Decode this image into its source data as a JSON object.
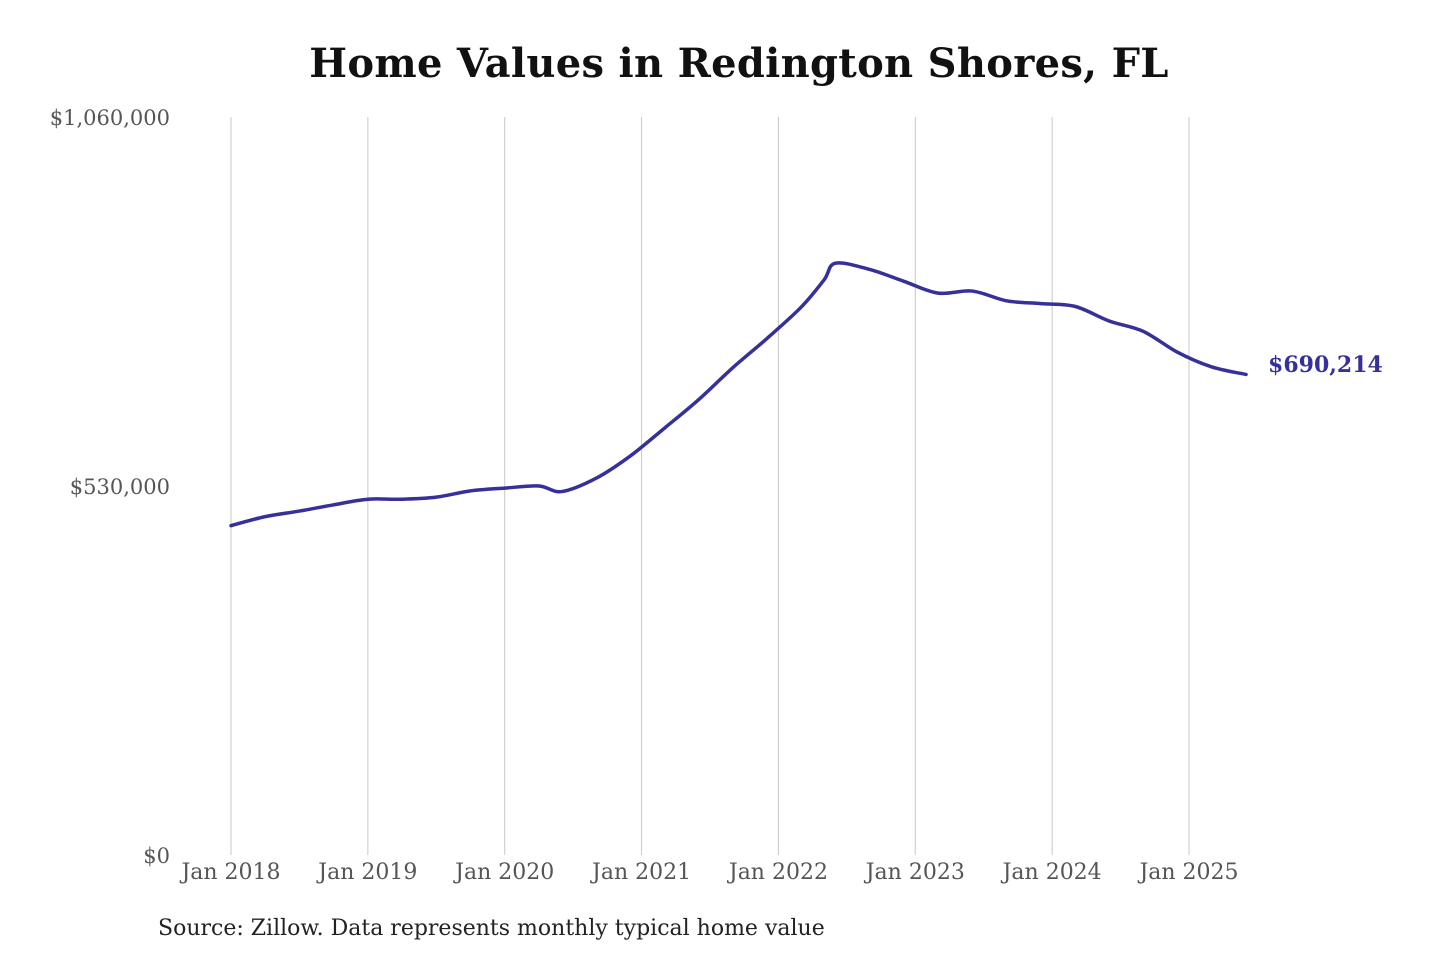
{
  "chart_data": {
    "type": "line",
    "title": "Home Values in Redington Shores, FL",
    "source": "Source: Zillow. Data represents monthly typical home value",
    "ylim": [
      0,
      1060000
    ],
    "y_ticks": [
      {
        "value": 0,
        "label": "$0"
      },
      {
        "value": 530000,
        "label": "$530,000"
      },
      {
        "value": 1060000,
        "label": "$1,060,000"
      }
    ],
    "x_range": [
      "2018-01",
      "2025-06"
    ],
    "x_ticks": [
      {
        "date": "2018-01",
        "label": "Jan 2018"
      },
      {
        "date": "2019-01",
        "label": "Jan 2019"
      },
      {
        "date": "2020-01",
        "label": "Jan 2020"
      },
      {
        "date": "2021-01",
        "label": "Jan 2021"
      },
      {
        "date": "2022-01",
        "label": "Jan 2022"
      },
      {
        "date": "2023-01",
        "label": "Jan 2023"
      },
      {
        "date": "2024-01",
        "label": "Jan 2024"
      },
      {
        "date": "2025-01",
        "label": "Jan 2025"
      }
    ],
    "grid": {
      "vertical": true,
      "horizontal": false
    },
    "series_color": "#35309a",
    "end_label": "$690,214",
    "series": [
      {
        "x": [
          "2018-01",
          "2018-04",
          "2018-07",
          "2018-10",
          "2019-01",
          "2019-04",
          "2019-07",
          "2019-10",
          "2020-01",
          "2020-04",
          "2020-06",
          "2020-09",
          "2020-12",
          "2021-03",
          "2021-06",
          "2021-09",
          "2021-12",
          "2022-03",
          "2022-05",
          "2022-06",
          "2022-09",
          "2022-12",
          "2023-03",
          "2023-06",
          "2023-09",
          "2023-12",
          "2024-03",
          "2024-06",
          "2024-09",
          "2024-12",
          "2025-03",
          "2025-06"
        ],
        "values": [
          473000,
          486000,
          494000,
          503000,
          511000,
          511000,
          514000,
          523000,
          527000,
          530000,
          522000,
          541000,
          573000,
          613000,
          654000,
          700000,
          742000,
          787000,
          826000,
          850000,
          841000,
          824000,
          807000,
          810000,
          796000,
          792000,
          788000,
          767000,
          752000,
          722000,
          701000,
          690214
        ]
      }
    ]
  }
}
